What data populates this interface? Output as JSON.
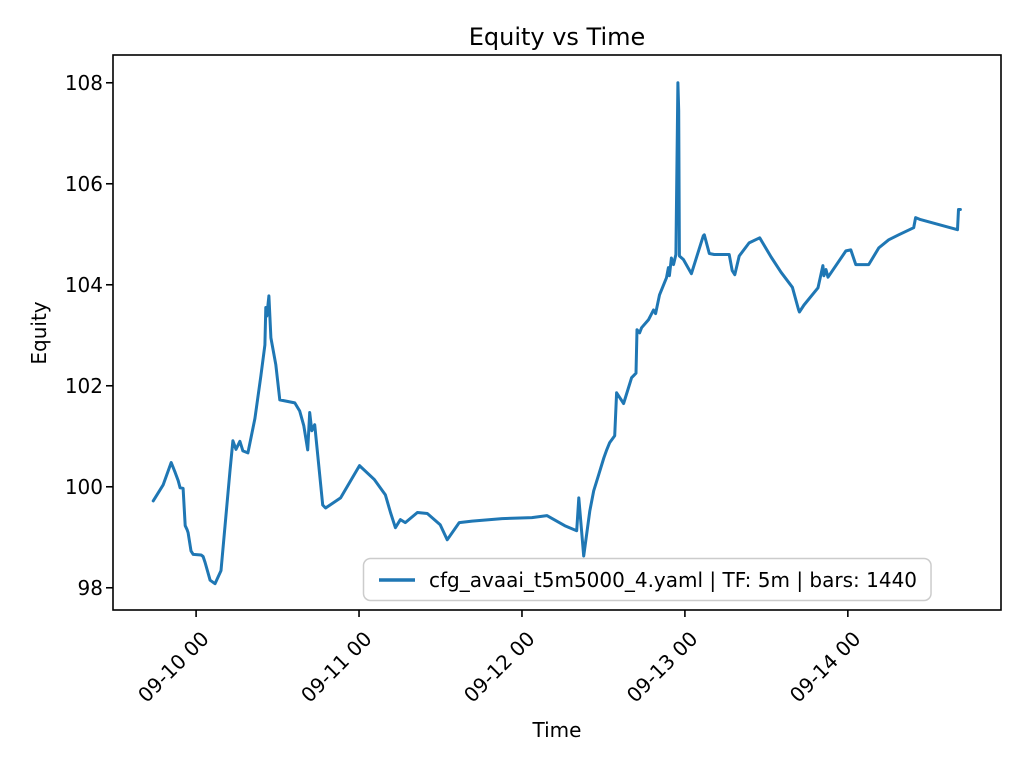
{
  "chart_data": {
    "type": "line",
    "title": "Equity vs Time",
    "xlabel": "Time",
    "ylabel": "Equity",
    "x_unit": "days relative to 09-10 00:00",
    "xlim": [
      -0.51,
      4.94
    ],
    "ylim": [
      97.56,
      108.55
    ],
    "grid": false,
    "legend_position": "lower right",
    "background": "#ffffff",
    "spine_color": "#000000",
    "tick_color": "#000000",
    "legend_border_color": "#cccccc",
    "xticks": [
      {
        "value": 0,
        "label": "09-10 00"
      },
      {
        "value": 1,
        "label": "09-11 00"
      },
      {
        "value": 2,
        "label": "09-12 00"
      },
      {
        "value": 3,
        "label": "09-13 00"
      },
      {
        "value": 4,
        "label": "09-14 00"
      }
    ],
    "yticks": [
      98,
      100,
      102,
      104,
      106,
      108
    ],
    "series": [
      {
        "name": "cfg_avaai_t5m5000_4.yaml | TF: 5m | bars: 1440",
        "color": "#1f77b4",
        "timeframe": "5m",
        "bars": 1440,
        "points": [
          [
            -0.263,
            99.72
          ],
          [
            -0.202,
            100.04
          ],
          [
            -0.153,
            100.48
          ],
          [
            -0.128,
            100.28
          ],
          [
            -0.11,
            100.12
          ],
          [
            -0.098,
            99.98
          ],
          [
            -0.08,
            99.97
          ],
          [
            -0.067,
            99.23
          ],
          [
            -0.055,
            99.15
          ],
          [
            -0.049,
            99.09
          ],
          [
            -0.031,
            98.73
          ],
          [
            -0.018,
            98.66
          ],
          [
            0.031,
            98.65
          ],
          [
            0.043,
            98.62
          ],
          [
            0.055,
            98.5
          ],
          [
            0.086,
            98.15
          ],
          [
            0.116,
            98.08
          ],
          [
            0.153,
            98.34
          ],
          [
            0.208,
            100.32
          ],
          [
            0.226,
            100.91
          ],
          [
            0.245,
            100.74
          ],
          [
            0.269,
            100.9
          ],
          [
            0.287,
            100.71
          ],
          [
            0.318,
            100.67
          ],
          [
            0.361,
            101.35
          ],
          [
            0.398,
            102.2
          ],
          [
            0.422,
            102.81
          ],
          [
            0.428,
            103.55
          ],
          [
            0.434,
            103.38
          ],
          [
            0.447,
            103.78
          ],
          [
            0.459,
            102.95
          ],
          [
            0.489,
            102.42
          ],
          [
            0.514,
            101.72
          ],
          [
            0.606,
            101.66
          ],
          [
            0.636,
            101.5
          ],
          [
            0.661,
            101.21
          ],
          [
            0.685,
            100.73
          ],
          [
            0.697,
            101.47
          ],
          [
            0.71,
            101.11
          ],
          [
            0.728,
            101.23
          ],
          [
            0.777,
            99.64
          ],
          [
            0.795,
            99.58
          ],
          [
            0.887,
            99.78
          ],
          [
            1.003,
            100.42
          ],
          [
            1.095,
            100.14
          ],
          [
            1.162,
            99.84
          ],
          [
            1.193,
            99.49
          ],
          [
            1.223,
            99.19
          ],
          [
            1.254,
            99.35
          ],
          [
            1.284,
            99.29
          ],
          [
            1.358,
            99.49
          ],
          [
            1.419,
            99.47
          ],
          [
            1.498,
            99.25
          ],
          [
            1.541,
            98.95
          ],
          [
            1.615,
            99.29
          ],
          [
            1.694,
            99.32
          ],
          [
            1.878,
            99.37
          ],
          [
            2.061,
            99.39
          ],
          [
            2.153,
            99.43
          ],
          [
            2.263,
            99.23
          ],
          [
            2.336,
            99.13
          ],
          [
            2.349,
            99.78
          ],
          [
            2.379,
            98.63
          ],
          [
            2.416,
            99.52
          ],
          [
            2.44,
            99.92
          ],
          [
            2.471,
            100.24
          ],
          [
            2.502,
            100.57
          ],
          [
            2.52,
            100.73
          ],
          [
            2.538,
            100.87
          ],
          [
            2.569,
            101.01
          ],
          [
            2.581,
            101.86
          ],
          [
            2.624,
            101.65
          ],
          [
            2.673,
            102.16
          ],
          [
            2.7,
            102.25
          ],
          [
            2.706,
            103.11
          ],
          [
            2.722,
            103.05
          ],
          [
            2.734,
            103.15
          ],
          [
            2.777,
            103.31
          ],
          [
            2.807,
            103.5
          ],
          [
            2.82,
            103.43
          ],
          [
            2.844,
            103.8
          ],
          [
            2.887,
            104.14
          ],
          [
            2.899,
            104.34
          ],
          [
            2.905,
            104.18
          ],
          [
            2.917,
            104.53
          ],
          [
            2.93,
            104.4
          ],
          [
            2.945,
            104.6
          ],
          [
            2.957,
            108.0
          ],
          [
            2.962,
            107.45
          ],
          [
            2.966,
            104.57
          ],
          [
            2.991,
            104.5
          ],
          [
            3.04,
            104.22
          ],
          [
            3.113,
            104.97
          ],
          [
            3.119,
            104.99
          ],
          [
            3.15,
            104.62
          ],
          [
            3.18,
            104.6
          ],
          [
            3.272,
            104.6
          ],
          [
            3.29,
            104.28
          ],
          [
            3.306,
            104.2
          ],
          [
            3.333,
            104.57
          ],
          [
            3.394,
            104.83
          ],
          [
            3.459,
            104.93
          ],
          [
            3.529,
            104.55
          ],
          [
            3.59,
            104.25
          ],
          [
            3.66,
            103.95
          ],
          [
            3.697,
            103.51
          ],
          [
            3.703,
            103.46
          ],
          [
            3.731,
            103.6
          ],
          [
            3.817,
            103.94
          ],
          [
            3.847,
            104.38
          ],
          [
            3.853,
            104.18
          ],
          [
            3.866,
            104.3
          ],
          [
            3.878,
            104.15
          ],
          [
            3.988,
            104.67
          ],
          [
            4.018,
            104.69
          ],
          [
            4.049,
            104.4
          ],
          [
            4.128,
            104.4
          ],
          [
            4.19,
            104.73
          ],
          [
            4.251,
            104.89
          ],
          [
            4.312,
            104.99
          ],
          [
            4.404,
            105.13
          ],
          [
            4.416,
            105.33
          ],
          [
            4.446,
            105.29
          ],
          [
            4.673,
            105.09
          ],
          [
            4.679,
            105.49
          ],
          [
            4.691,
            105.49
          ]
        ]
      }
    ]
  }
}
